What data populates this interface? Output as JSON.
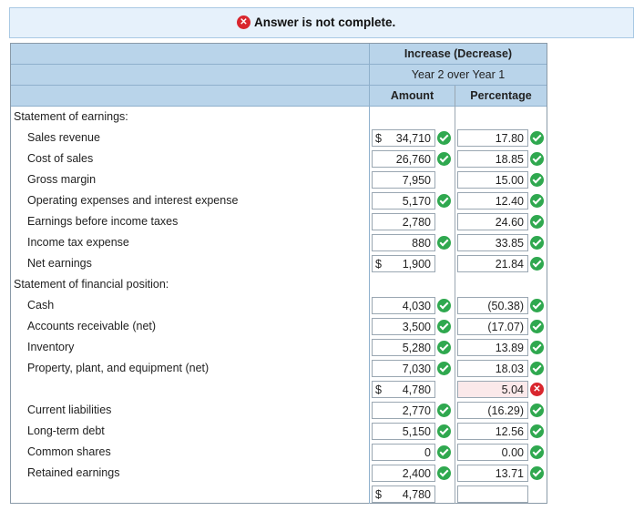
{
  "banner": {
    "status_text": "Answer is not complete."
  },
  "table": {
    "header": {
      "group_title": "Increase (Decrease)",
      "period": "Year 2 over Year 1",
      "col_amount": "Amount",
      "col_percentage": "Percentage"
    },
    "rows": [
      {
        "label": "Statement of earnings:",
        "section": true
      },
      {
        "label": "Sales revenue",
        "dollar": "$",
        "amount": "34,710",
        "amount_ok": true,
        "pct": "17.80",
        "pct_ok": true
      },
      {
        "label": "Cost of sales",
        "amount": "26,760",
        "amount_ok": true,
        "pct": "18.85",
        "pct_ok": true
      },
      {
        "label": "Gross margin",
        "amount": "7,950",
        "pct": "15.00",
        "pct_ok": true
      },
      {
        "label": "Operating expenses and interest expense",
        "amount": "5,170",
        "amount_ok": true,
        "pct": "12.40",
        "pct_ok": true
      },
      {
        "label": "Earnings before income taxes",
        "amount": "2,780",
        "pct": "24.60",
        "pct_ok": true
      },
      {
        "label": "Income tax expense",
        "amount": "880",
        "amount_ok": true,
        "pct": "33.85",
        "pct_ok": true
      },
      {
        "label": "Net earnings",
        "dollar": "$",
        "amount": "1,900",
        "pct": "21.84",
        "pct_ok": true
      },
      {
        "label": "Statement of financial position:",
        "section": true
      },
      {
        "label": "Cash",
        "amount": "4,030",
        "amount_ok": true,
        "pct": "(50.38)",
        "pct_ok": true
      },
      {
        "label": "Accounts receivable (net)",
        "amount": "3,500",
        "amount_ok": true,
        "pct": "(17.07)",
        "pct_ok": true
      },
      {
        "label": "Inventory",
        "amount": "5,280",
        "amount_ok": true,
        "pct": "13.89",
        "pct_ok": true
      },
      {
        "label": "Property, plant, and equipment (net)",
        "amount": "7,030",
        "amount_ok": true,
        "pct": "18.03",
        "pct_ok": true
      },
      {
        "label": "",
        "dollar": "$",
        "amount": "4,780",
        "pct": "5.04",
        "pct_wrong": true
      },
      {
        "label": "Current liabilities",
        "amount": "2,770",
        "amount_ok": true,
        "pct": "(16.29)",
        "pct_ok": true
      },
      {
        "label": "Long-term debt",
        "amount": "5,150",
        "amount_ok": true,
        "pct": "12.56",
        "pct_ok": true
      },
      {
        "label": "Common shares",
        "amount": "0",
        "amount_ok": true,
        "pct": "0.00",
        "pct_ok": true
      },
      {
        "label": "Retained earnings",
        "amount": "2,400",
        "amount_ok": true,
        "pct": "13.71",
        "pct_ok": true
      },
      {
        "label": "",
        "dollar": "$",
        "amount": "4,780"
      }
    ]
  }
}
